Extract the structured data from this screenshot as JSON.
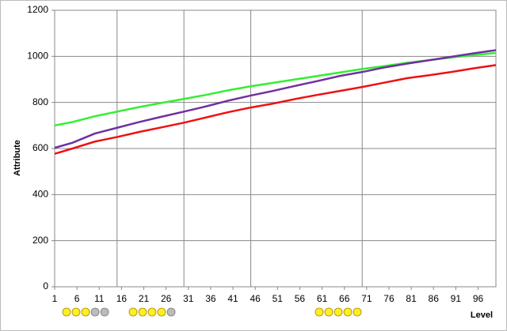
{
  "chart_data": {
    "type": "line",
    "x_label": "Level",
    "y_label": "Attribute",
    "x": [
      1,
      5,
      10,
      15,
      20,
      25,
      30,
      35,
      40,
      45,
      50,
      55,
      60,
      65,
      70,
      75,
      80,
      85,
      90,
      95,
      100
    ],
    "series": [
      {
        "color": "#33ee33",
        "values": [
          700,
          715,
          740,
          760,
          780,
          798,
          815,
          833,
          853,
          870,
          885,
          900,
          915,
          930,
          945,
          958,
          972,
          983,
          995,
          1005,
          1015
        ]
      },
      {
        "color": "#7030a0",
        "values": [
          603,
          625,
          665,
          690,
          715,
          738,
          760,
          783,
          808,
          830,
          850,
          872,
          893,
          915,
          932,
          952,
          968,
          983,
          998,
          1013,
          1027
        ]
      },
      {
        "color": "#ee1111",
        "values": [
          577,
          600,
          630,
          650,
          672,
          692,
          712,
          735,
          758,
          778,
          795,
          815,
          833,
          850,
          867,
          886,
          905,
          918,
          932,
          948,
          962
        ]
      }
    ],
    "xlim": [
      1,
      100
    ],
    "xticks": [
      1,
      6,
      11,
      16,
      21,
      26,
      31,
      36,
      41,
      46,
      51,
      56,
      61,
      66,
      71,
      76,
      81,
      86,
      91,
      96
    ],
    "ylim": [
      0,
      1200
    ],
    "yticks": [
      0,
      200,
      400,
      600,
      800,
      1000,
      1200
    ],
    "grid": true,
    "x_grid_lines": [
      15,
      30,
      45,
      70
    ]
  }
}
